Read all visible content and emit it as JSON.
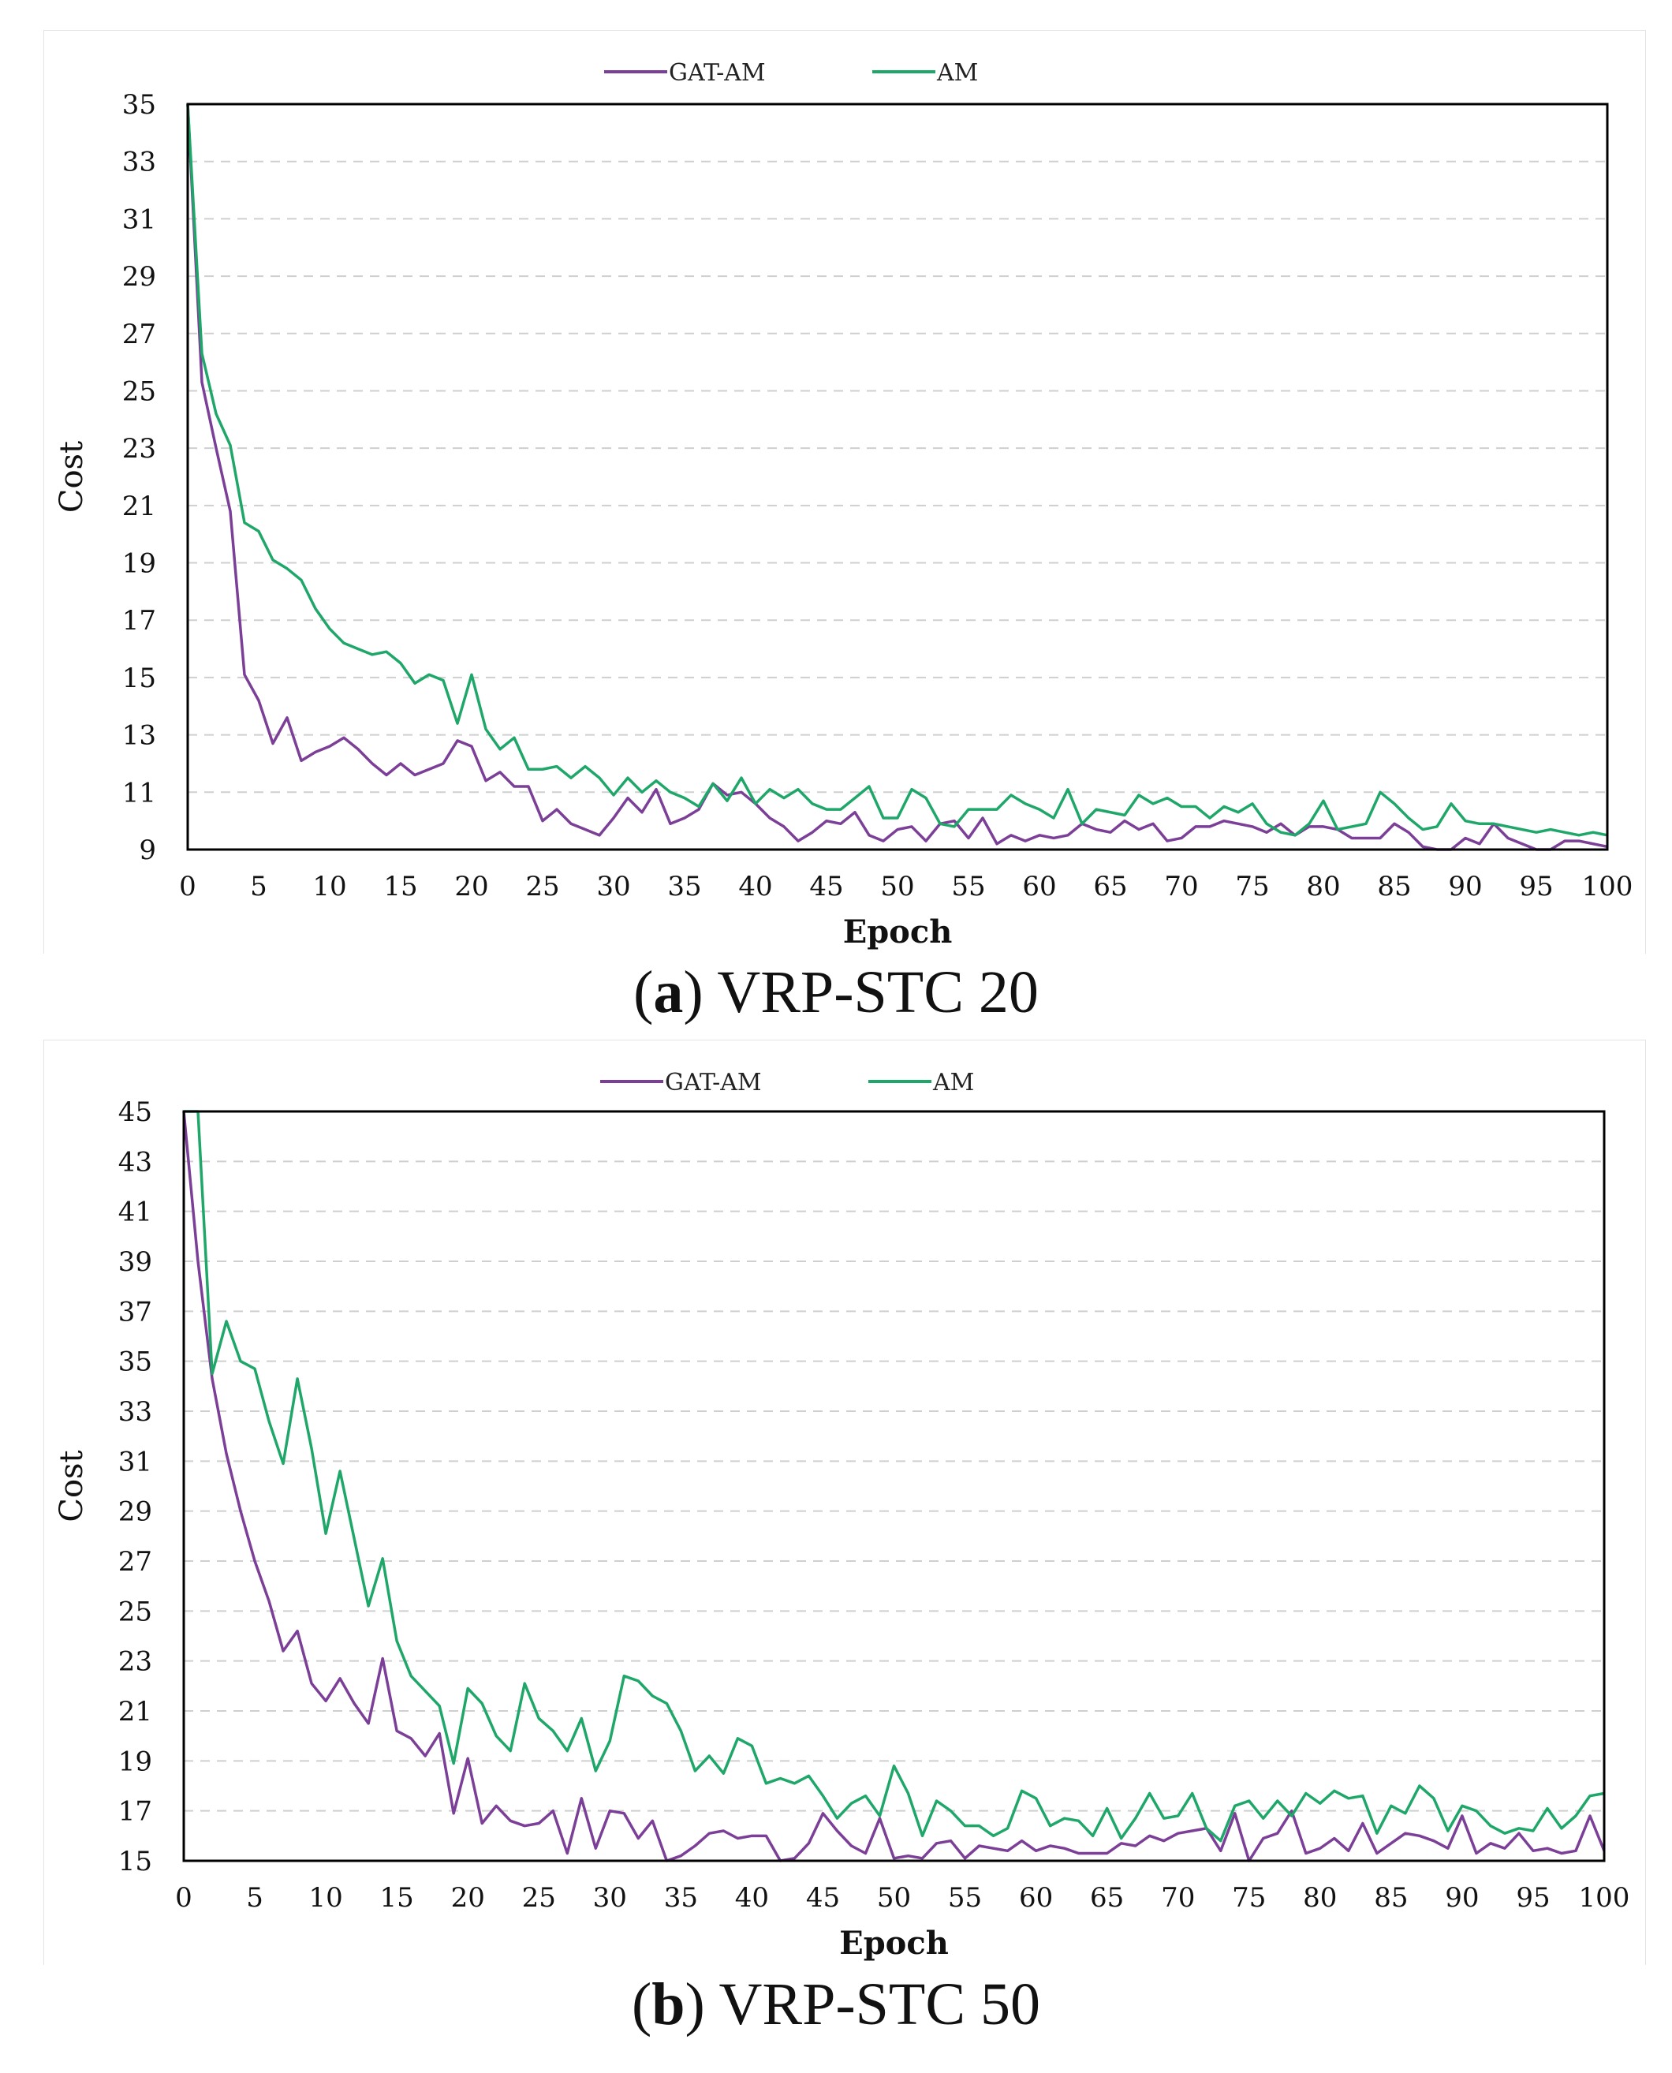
{
  "colors": {
    "gat_am": "#7B3F98",
    "am": "#1FA76A",
    "grid": "#cfcfcf",
    "frame": "#000000"
  },
  "captions": [
    {
      "letter": "a",
      "paren_open": "(",
      "paren_close": ")",
      "text": " VRP-STC 20"
    },
    {
      "letter": "b",
      "paren_open": "(",
      "paren_close": ")",
      "text": " VRP-STC 50"
    }
  ],
  "chart_data": [
    {
      "type": "line",
      "title": "(a) VRP-STC 20",
      "xlabel": "Epoch",
      "ylabel": "Cost",
      "xlim": [
        0,
        100
      ],
      "ylim": [
        9,
        35
      ],
      "xticks": [
        0,
        5,
        10,
        15,
        20,
        25,
        30,
        35,
        40,
        45,
        50,
        55,
        60,
        65,
        70,
        75,
        80,
        85,
        90,
        95,
        100
      ],
      "yticks": [
        9,
        11,
        13,
        15,
        17,
        19,
        21,
        23,
        25,
        27,
        29,
        31,
        33,
        35
      ],
      "grid": "horizontal dashed",
      "legend": "top-center",
      "series": [
        {
          "name": "GAT-AM",
          "color": "#7B3F98",
          "values": [
            35,
            25.3,
            23,
            20.8,
            15.1,
            14.2,
            12.7,
            13.6,
            12.1,
            12.4,
            12.6,
            12.9,
            12.5,
            12.0,
            11.6,
            12.0,
            11.6,
            11.8,
            12.0,
            12.8,
            12.6,
            11.4,
            11.7,
            11.2,
            11.2,
            10.0,
            10.4,
            9.9,
            9.7,
            9.5,
            10.1,
            10.8,
            10.3,
            11.1,
            9.9,
            10.1,
            10.4,
            11.3,
            10.9,
            11.0,
            10.6,
            10.1,
            9.8,
            9.3,
            9.6,
            10.0,
            9.9,
            10.3,
            9.5,
            9.3,
            9.7,
            9.8,
            9.3,
            9.9,
            10.0,
            9.4,
            10.1,
            9.2,
            9.5,
            9.3,
            9.5,
            9.4,
            9.5,
            9.9,
            9.7,
            9.6,
            10.0,
            9.7,
            9.9,
            9.3,
            9.4,
            9.8,
            9.8,
            10.0,
            9.9,
            9.8,
            9.6,
            9.9,
            9.5,
            9.8,
            9.8,
            9.7,
            9.4,
            9.4,
            9.4,
            9.9,
            9.6,
            9.1,
            8.9,
            8.9,
            9.4,
            9.2,
            9.9,
            9.4,
            9.2,
            9.0,
            9.0,
            9.3,
            9.3,
            9.2,
            9.1
          ]
        },
        {
          "name": "AM",
          "color": "#1FA76A",
          "values": [
            35,
            26.3,
            24.2,
            23.1,
            20.4,
            20.1,
            19.1,
            18.8,
            18.4,
            17.4,
            16.7,
            16.2,
            16.0,
            15.8,
            15.9,
            15.5,
            14.8,
            15.1,
            14.9,
            13.4,
            15.1,
            13.2,
            12.5,
            12.9,
            11.8,
            11.8,
            11.9,
            11.5,
            11.9,
            11.5,
            10.9,
            11.5,
            11.0,
            11.4,
            11.0,
            10.8,
            10.5,
            11.3,
            10.7,
            11.5,
            10.6,
            11.1,
            10.8,
            11.1,
            10.6,
            10.4,
            10.4,
            10.8,
            11.2,
            10.1,
            10.1,
            11.1,
            10.8,
            9.9,
            9.8,
            10.4,
            10.4,
            10.4,
            10.9,
            10.6,
            10.4,
            10.1,
            11.1,
            9.9,
            10.4,
            10.3,
            10.2,
            10.9,
            10.6,
            10.8,
            10.5,
            10.5,
            10.1,
            10.5,
            10.3,
            10.6,
            9.9,
            9.6,
            9.5,
            9.9,
            10.7,
            9.7,
            9.8,
            9.9,
            11.0,
            10.6,
            10.1,
            9.7,
            9.8,
            10.6,
            10.0,
            9.9,
            9.9,
            9.8,
            9.7,
            9.6,
            9.7,
            9.6,
            9.5,
            9.6,
            9.5
          ]
        }
      ]
    },
    {
      "type": "line",
      "title": "(b) VRP-STC 50",
      "xlabel": "Epoch",
      "ylabel": "Cost",
      "xlim": [
        0,
        100
      ],
      "ylim": [
        15,
        45
      ],
      "xticks": [
        0,
        5,
        10,
        15,
        20,
        25,
        30,
        35,
        40,
        45,
        50,
        55,
        60,
        65,
        70,
        75,
        80,
        85,
        90,
        95,
        100
      ],
      "yticks": [
        15,
        17,
        19,
        21,
        23,
        25,
        27,
        29,
        31,
        33,
        35,
        37,
        39,
        41,
        43,
        45
      ],
      "grid": "horizontal dashed",
      "legend": "top-center",
      "series": [
        {
          "name": "GAT-AM",
          "color": "#7B3F98",
          "values": [
            45,
            39,
            34.3,
            31.3,
            29.0,
            27.0,
            25.4,
            23.4,
            24.2,
            22.1,
            21.4,
            22.3,
            21.3,
            20.5,
            23.1,
            20.2,
            19.9,
            19.2,
            20.1,
            16.9,
            19.1,
            16.5,
            17.2,
            16.6,
            16.4,
            16.5,
            17.0,
            15.3,
            17.5,
            15.5,
            17.0,
            16.9,
            15.9,
            16.6,
            15.0,
            15.2,
            15.6,
            16.1,
            16.2,
            15.9,
            16.0,
            16.0,
            15.0,
            15.1,
            15.7,
            16.9,
            16.2,
            15.6,
            15.3,
            16.7,
            15.1,
            15.2,
            15.1,
            15.7,
            15.8,
            15.1,
            15.6,
            15.5,
            15.4,
            15.8,
            15.4,
            15.6,
            15.5,
            15.3,
            15.3,
            15.3,
            15.7,
            15.6,
            16.0,
            15.8,
            16.1,
            16.2,
            16.3,
            15.4,
            16.9,
            15.0,
            15.9,
            16.1,
            17.0,
            15.3,
            15.5,
            15.9,
            15.4,
            16.5,
            15.3,
            15.7,
            16.1,
            16.0,
            15.8,
            15.5,
            16.8,
            15.3,
            15.7,
            15.5,
            16.1,
            15.4,
            15.5,
            15.3,
            15.4,
            16.8,
            15.4
          ]
        },
        {
          "name": "AM",
          "color": "#1FA76A",
          "values": [
            45,
            45,
            34.5,
            36.6,
            35.0,
            34.7,
            32.6,
            30.9,
            34.3,
            31.5,
            28.1,
            30.6,
            27.9,
            25.2,
            27.1,
            23.8,
            22.4,
            21.8,
            21.2,
            18.9,
            21.9,
            21.3,
            20.0,
            19.4,
            22.1,
            20.7,
            20.2,
            19.4,
            20.7,
            18.6,
            19.8,
            22.4,
            22.2,
            21.6,
            21.3,
            20.2,
            18.6,
            19.2,
            18.5,
            19.9,
            19.6,
            18.1,
            18.3,
            18.1,
            18.4,
            17.6,
            16.7,
            17.3,
            17.6,
            16.8,
            18.8,
            17.7,
            16.0,
            17.4,
            17.0,
            16.4,
            16.4,
            16.0,
            16.3,
            17.8,
            17.5,
            16.4,
            16.7,
            16.6,
            16.0,
            17.1,
            15.9,
            16.7,
            17.7,
            16.7,
            16.8,
            17.7,
            16.3,
            15.8,
            17.2,
            17.4,
            16.7,
            17.4,
            16.8,
            17.7,
            17.3,
            17.8,
            17.5,
            17.6,
            16.1,
            17.2,
            16.9,
            18.0,
            17.5,
            16.2,
            17.2,
            17.0,
            16.4,
            16.1,
            16.3,
            16.2,
            17.1,
            16.3,
            16.8,
            17.6,
            17.7
          ]
        }
      ]
    }
  ]
}
